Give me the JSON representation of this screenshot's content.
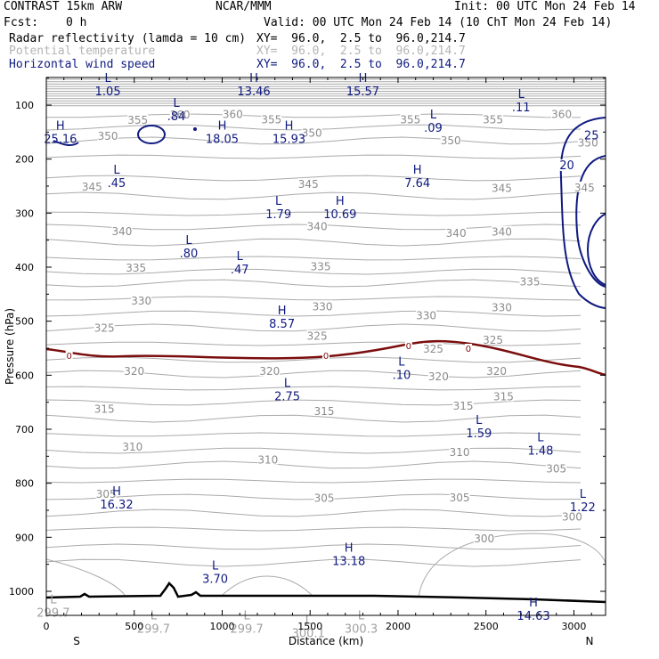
{
  "header": {
    "model": "CONTRAST 15km ARW",
    "center": "NCAR/MMM",
    "init": "Init: 00 UTC Mon 24 Feb 14",
    "fcst_label": "Fcst:",
    "fcst_value": "0 h",
    "valid": "Valid: 00 UTC Mon 24 Feb 14 (10 ChT Mon 24 Feb 14)",
    "fields": [
      {
        "name": "Radar reflectivity (lamda = 10 cm)",
        "xy": "XY=  96.0,  2.5 to  96.0,214.7",
        "color": "#000000"
      },
      {
        "name": "Potential temperature",
        "xy": "XY=  96.0,  2.5 to  96.0,214.7",
        "color": "#b4b4b4"
      },
      {
        "name": "Horizontal wind speed",
        "xy": "XY=  96.0,  2.5 to  96.0,214.7",
        "color": "#0f1a80"
      }
    ]
  },
  "colors": {
    "theta": "#aaaaaa",
    "wind": "#0f1a80",
    "zero": "#7b0d0d",
    "terrain": "#000000"
  },
  "chart_data": {
    "type": "cross-section contour",
    "xlabel": "Distance (km)",
    "ylabel": "Pressure (hPa)",
    "xlim": [
      0,
      3180
    ],
    "ylim": [
      1050,
      50
    ],
    "x_ticks": [
      0,
      500,
      1000,
      1500,
      2000,
      2500,
      3000
    ],
    "y_ticks": [
      100,
      200,
      300,
      400,
      500,
      600,
      700,
      800,
      900,
      1000
    ],
    "x_end_labels": {
      "left": "S",
      "right": "N"
    },
    "theta_labels": [
      {
        "t": "360",
        "x": 760,
        "p": 118
      },
      {
        "t": "360",
        "x": 1060,
        "p": 117
      },
      {
        "t": "360",
        "x": 2930,
        "p": 117
      },
      {
        "t": "355",
        "x": 520,
        "p": 128
      },
      {
        "t": "355",
        "x": 1280,
        "p": 127
      },
      {
        "t": "355",
        "x": 2070,
        "p": 127
      },
      {
        "t": "355",
        "x": 2540,
        "p": 127
      },
      {
        "t": "350",
        "x": 350,
        "p": 158
      },
      {
        "t": "350",
        "x": 1510,
        "p": 152
      },
      {
        "t": "350",
        "x": 2300,
        "p": 166
      },
      {
        "t": "350",
        "x": 3080,
        "p": 170
      },
      {
        "t": "345",
        "x": 260,
        "p": 252
      },
      {
        "t": "345",
        "x": 1490,
        "p": 247
      },
      {
        "t": "345",
        "x": 2590,
        "p": 254
      },
      {
        "t": "345",
        "x": 3060,
        "p": 253
      },
      {
        "t": "340",
        "x": 430,
        "p": 334
      },
      {
        "t": "340",
        "x": 1540,
        "p": 325
      },
      {
        "t": "340",
        "x": 2330,
        "p": 337
      },
      {
        "t": "340",
        "x": 2590,
        "p": 335
      },
      {
        "t": "335",
        "x": 510,
        "p": 402
      },
      {
        "t": "335",
        "x": 1560,
        "p": 399
      },
      {
        "t": "335",
        "x": 2750,
        "p": 427
      },
      {
        "t": "330",
        "x": 540,
        "p": 463
      },
      {
        "t": "330",
        "x": 1570,
        "p": 473
      },
      {
        "t": "330",
        "x": 2160,
        "p": 490
      },
      {
        "t": "330",
        "x": 2590,
        "p": 475
      },
      {
        "t": "325",
        "x": 330,
        "p": 513
      },
      {
        "t": "325",
        "x": 1540,
        "p": 528
      },
      {
        "t": "325",
        "x": 2540,
        "p": 535
      },
      {
        "t": "325",
        "x": 2200,
        "p": 552
      },
      {
        "t": "320",
        "x": 500,
        "p": 593
      },
      {
        "t": "320",
        "x": 1270,
        "p": 593
      },
      {
        "t": "320",
        "x": 2230,
        "p": 603
      },
      {
        "t": "320",
        "x": 2560,
        "p": 593
      },
      {
        "t": "315",
        "x": 330,
        "p": 663
      },
      {
        "t": "315",
        "x": 1580,
        "p": 667
      },
      {
        "t": "315",
        "x": 2370,
        "p": 657
      },
      {
        "t": "315",
        "x": 2600,
        "p": 640
      },
      {
        "t": "310",
        "x": 490,
        "p": 733
      },
      {
        "t": "310",
        "x": 1260,
        "p": 757
      },
      {
        "t": "310",
        "x": 2350,
        "p": 743
      },
      {
        "t": "305",
        "x": 340,
        "p": 820
      },
      {
        "t": "305",
        "x": 1580,
        "p": 828
      },
      {
        "t": "305",
        "x": 2350,
        "p": 827
      },
      {
        "t": "305",
        "x": 2900,
        "p": 773
      },
      {
        "t": "300",
        "x": 2490,
        "p": 903
      },
      {
        "t": "300",
        "x": 2990,
        "p": 862
      }
    ],
    "extrema": [
      {
        "kind": "L",
        "value": "1.05",
        "x": 350,
        "p": 57,
        "cls": "hl"
      },
      {
        "kind": "L",
        "value": ".84",
        "x": 740,
        "p": 103,
        "cls": "hl"
      },
      {
        "kind": "H",
        "value": "13.46",
        "x": 1180,
        "p": 57,
        "cls": "hl"
      },
      {
        "kind": "H",
        "value": "15.57",
        "x": 1800,
        "p": 57,
        "cls": "hl"
      },
      {
        "kind": "L",
        "value": ".11",
        "x": 2700,
        "p": 87,
        "cls": "hl"
      },
      {
        "kind": "H",
        "value": "25.16",
        "x": 80,
        "p": 145,
        "cls": "hl"
      },
      {
        "kind": "H",
        "value": "18.05",
        "x": 1000,
        "p": 145,
        "cls": "hl"
      },
      {
        "kind": "H",
        "value": "15.93",
        "x": 1380,
        "p": 145,
        "cls": "hl"
      },
      {
        "kind": "L",
        "value": ".09",
        "x": 2200,
        "p": 125,
        "cls": "hl"
      },
      {
        "kind": "L",
        "value": ".45",
        "x": 400,
        "p": 227,
        "cls": "hl"
      },
      {
        "kind": "H",
        "value": "7.64",
        "x": 2110,
        "p": 227,
        "cls": "hl"
      },
      {
        "kind": "L",
        "value": "1.79",
        "x": 1320,
        "p": 285,
        "cls": "hl"
      },
      {
        "kind": "H",
        "value": "10.69",
        "x": 1670,
        "p": 285,
        "cls": "hl"
      },
      {
        "kind": "L",
        "value": ".80",
        "x": 810,
        "p": 357,
        "cls": "hl"
      },
      {
        "kind": "L",
        "value": ".47",
        "x": 1100,
        "p": 387,
        "cls": "hl"
      },
      {
        "kind": "H",
        "value": "8.57",
        "x": 1340,
        "p": 487,
        "cls": "hl"
      },
      {
        "kind": "L",
        "value": ".10",
        "x": 2020,
        "p": 582,
        "cls": "hl"
      },
      {
        "kind": "L",
        "value": "2.75",
        "x": 1370,
        "p": 622,
        "cls": "hl"
      },
      {
        "kind": "L",
        "value": "1.59",
        "x": 2460,
        "p": 690,
        "cls": "hl"
      },
      {
        "kind": "L",
        "value": "1.48",
        "x": 2810,
        "p": 722,
        "cls": "hl"
      },
      {
        "kind": "H",
        "value": "16.32",
        "x": 400,
        "p": 822,
        "cls": "hl"
      },
      {
        "kind": "L",
        "value": "1.22",
        "x": 3050,
        "p": 827,
        "cls": "hl"
      },
      {
        "kind": "H",
        "value": "13.18",
        "x": 1720,
        "p": 927,
        "cls": "hl"
      },
      {
        "kind": "L",
        "value": "3.70",
        "x": 960,
        "p": 960,
        "cls": "hl"
      },
      {
        "kind": "H",
        "value": "14.63",
        "x": 2770,
        "p": 1028,
        "cls": "hlg_blue"
      },
      {
        "kind": "L",
        "value": "299.7",
        "x": 40,
        "p": 1022,
        "cls": "hlg"
      },
      {
        "kind": "L",
        "value": "299.7",
        "x": 610,
        "p": 1052,
        "cls": "hlg"
      },
      {
        "kind": "L",
        "value": "299.7",
        "x": 1140,
        "p": 1052,
        "cls": "hlg"
      },
      {
        "kind": "L",
        "value": "300.1",
        "x": 1490,
        "p": 1060,
        "cls": "hlg"
      },
      {
        "kind": "L",
        "value": "300.3",
        "x": 1790,
        "p": 1052,
        "cls": "hlg"
      }
    ],
    "wind_labels": [
      {
        "t": "25",
        "x": 3100,
        "p": 157
      },
      {
        "t": "20",
        "x": 2960,
        "p": 212
      }
    ],
    "zero_labels": [
      {
        "t": "0",
        "x": 130,
        "p": 563
      },
      {
        "t": "0",
        "x": 1590,
        "p": 563
      },
      {
        "t": "0",
        "x": 2060,
        "p": 545
      },
      {
        "t": "0",
        "x": 2400,
        "p": 550
      }
    ]
  }
}
